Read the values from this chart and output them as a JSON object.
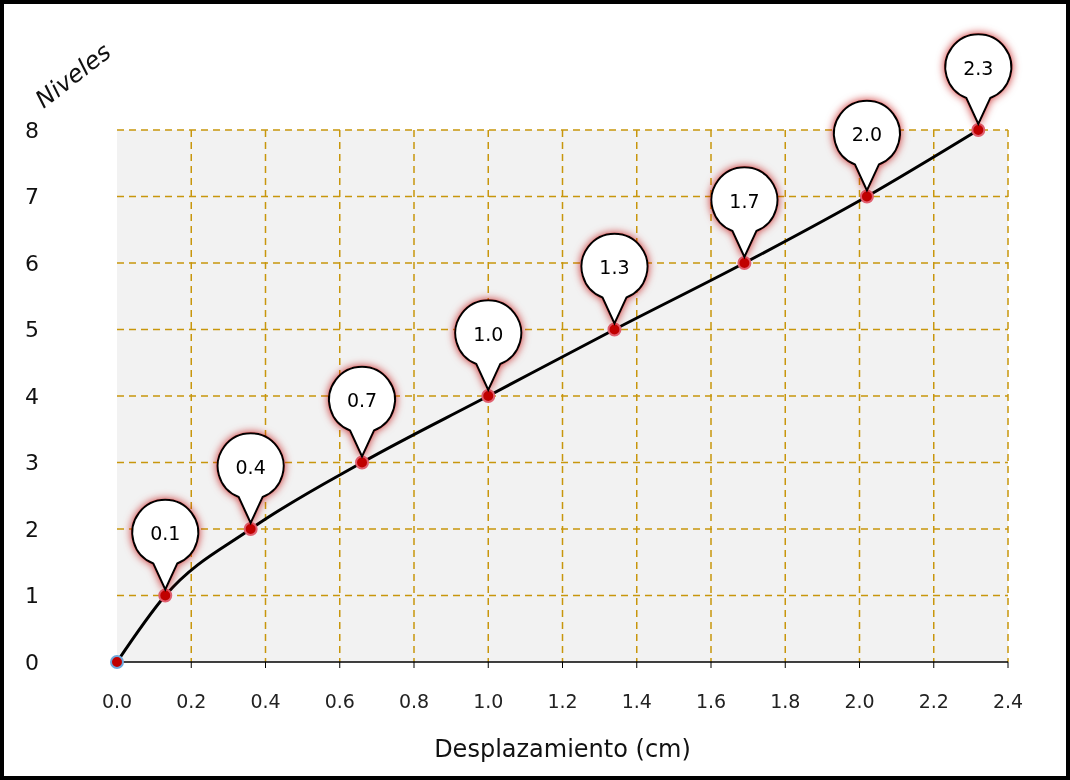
{
  "chart_data": {
    "type": "line",
    "xlabel": "Desplazamiento (cm)",
    "ylabel": "Niveles",
    "x": [
      0,
      0.13,
      0.36,
      0.66,
      1.0,
      1.34,
      1.69,
      2.02,
      2.32
    ],
    "values": [
      0,
      1,
      2,
      3,
      4,
      5,
      6,
      7,
      8
    ],
    "annotations": [
      {
        "text": "0.1",
        "x": 0.13,
        "y": 1
      },
      {
        "text": "0.4",
        "x": 0.36,
        "y": 2
      },
      {
        "text": "0.7",
        "x": 0.66,
        "y": 3
      },
      {
        "text": "1.0",
        "x": 1.0,
        "y": 4
      },
      {
        "text": "1.3",
        "x": 1.34,
        "y": 5
      },
      {
        "text": "1.7",
        "x": 1.69,
        "y": 6
      },
      {
        "text": "2.0",
        "x": 2.02,
        "y": 7
      },
      {
        "text": "2.3",
        "x": 2.32,
        "y": 8
      }
    ],
    "color": "#000000",
    "marker": "circle",
    "line_style": "solid",
    "grid": true,
    "xlim": [
      0,
      2.4
    ],
    "ylim": [
      0,
      8
    ],
    "xticks": [
      {
        "value": 0,
        "label": "0.0"
      },
      {
        "value": 0.2,
        "label": "0.2"
      },
      {
        "value": 0.4,
        "label": "0.4"
      },
      {
        "value": 0.6,
        "label": "0.6"
      },
      {
        "value": 0.8,
        "label": "0.8"
      },
      {
        "value": 1,
        "label": "1.0"
      },
      {
        "value": 1.2,
        "label": "1.2"
      },
      {
        "value": 1.4,
        "label": "1.4"
      },
      {
        "value": 1.6,
        "label": "1.6"
      },
      {
        "value": 1.8,
        "label": "1.8"
      },
      {
        "value": 2,
        "label": "2.0"
      },
      {
        "value": 2.2,
        "label": "2.2"
      },
      {
        "value": 2.4,
        "label": "2.4"
      }
    ],
    "yticks": [
      0,
      1,
      2,
      3,
      4,
      5,
      6,
      7,
      8
    ]
  }
}
